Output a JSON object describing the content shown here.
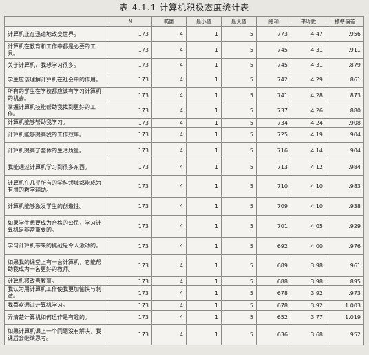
{
  "title": "表 4.1.1  计算机积极态度统计表",
  "headers": [
    "",
    "N",
    "範圍",
    "最小值",
    "最大值",
    "總和",
    "平均數",
    "標準偏差"
  ],
  "rows": [
    {
      "label": "计算机正在迅速地改变世界。",
      "n": "173",
      "range": "4",
      "min": "1",
      "max": "5",
      "sum": "773",
      "mean": "4.47",
      "sd": ".956"
    },
    {
      "label": "计算机在教育和工作中都是必要的工具。",
      "n": "173",
      "range": "4",
      "min": "1",
      "max": "5",
      "sum": "745",
      "mean": "4.31",
      "sd": ".911"
    },
    {
      "label": "关于计算机，我想学习很多。",
      "n": "173",
      "range": "4",
      "min": "1",
      "max": "5",
      "sum": "745",
      "mean": "4.31",
      "sd": ".879"
    },
    {
      "label": "学生应该理解计算机在社会中的作用。",
      "n": "173",
      "range": "4",
      "min": "1",
      "max": "5",
      "sum": "742",
      "mean": "4.29",
      "sd": ".861"
    },
    {
      "label": "所有的学生在学校都应该有学习计算机的机会。",
      "n": "173",
      "range": "4",
      "min": "1",
      "max": "5",
      "sum": "741",
      "mean": "4.28",
      "sd": ".873"
    },
    {
      "label": "掌握计算机技能帮助我找到更好的工作。",
      "n": "173",
      "range": "4",
      "min": "1",
      "max": "5",
      "sum": "737",
      "mean": "4.26",
      "sd": ".880"
    },
    {
      "label": "计算机能够帮助我学习。",
      "n": "173",
      "range": "4",
      "min": "1",
      "max": "5",
      "sum": "734",
      "mean": "4.24",
      "sd": ".908"
    },
    {
      "label": "计算机能够提高我的工作效率。",
      "n": "173",
      "range": "4",
      "min": "1",
      "max": "5",
      "sum": "725",
      "mean": "4.19",
      "sd": ".904"
    },
    {
      "label": "计算机提高了整体的生活质量。",
      "n": "173",
      "range": "4",
      "min": "1",
      "max": "5",
      "sum": "716",
      "mean": "4.14",
      "sd": ".904"
    },
    {
      "label": "我能通过计算机学习到很多东西。",
      "n": "173",
      "range": "4",
      "min": "1",
      "max": "5",
      "sum": "713",
      "mean": "4.12",
      "sd": ".984"
    },
    {
      "label": "计算机在几乎所有的学科领域都能成为有用的教学辅助。",
      "n": "173",
      "range": "4",
      "min": "1",
      "max": "5",
      "sum": "710",
      "mean": "4.10",
      "sd": ".983"
    },
    {
      "label": "计算机能够激发学生的创造性。",
      "n": "173",
      "range": "4",
      "min": "1",
      "max": "5",
      "sum": "709",
      "mean": "4.10",
      "sd": ".938"
    },
    {
      "label": "如果学生想要成为合格的公民，学习计算机是非常重要的。",
      "n": "173",
      "range": "4",
      "min": "1",
      "max": "5",
      "sum": "701",
      "mean": "4.05",
      "sd": ".929"
    },
    {
      "label": "学习计算机带来的挑战是令人激动的。",
      "n": "173",
      "range": "4",
      "min": "1",
      "max": "5",
      "sum": "692",
      "mean": "4.00",
      "sd": ".976"
    },
    {
      "label": "如果我的课堂上有一台计算机，它能帮助我成为一名更好的教师。",
      "n": "173",
      "range": "4",
      "min": "1",
      "max": "5",
      "sum": "689",
      "mean": "3.98",
      "sd": ".961"
    },
    {
      "label": "计算机将改善教育。",
      "n": "173",
      "range": "4",
      "min": "1",
      "max": "5",
      "sum": "688",
      "mean": "3.98",
      "sd": ".895"
    },
    {
      "label": "我认为用计算机工作使我更加愉快与刺激。",
      "n": "173",
      "range": "4",
      "min": "1",
      "max": "5",
      "sum": "678",
      "mean": "3.92",
      "sd": ".973"
    },
    {
      "label": "我喜欢通过计算机学习。",
      "n": "173",
      "range": "4",
      "min": "1",
      "max": "5",
      "sum": "678",
      "mean": "3.92",
      "sd": "1.003"
    },
    {
      "label": "弄清楚计算机如何运作是有趣的。",
      "n": "173",
      "range": "4",
      "min": "1",
      "max": "5",
      "sum": "652",
      "mean": "3.77",
      "sd": "1.019"
    },
    {
      "label": "如果计算机课上一个问题没有解决，我课后会继续思考。",
      "n": "173",
      "range": "4",
      "min": "1",
      "max": "5",
      "sum": "636",
      "mean": "3.68",
      "sd": ".952"
    }
  ]
}
